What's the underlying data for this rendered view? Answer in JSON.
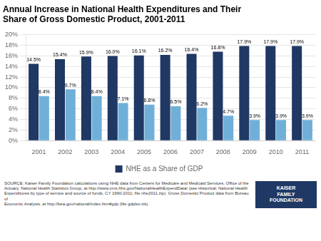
{
  "chart_data": {
    "type": "bar",
    "title": [
      "Annual Increase in National Health Expenditures and Their",
      "Share of Gross Domestic Product, 2001-2011"
    ],
    "categories": [
      "2001",
      "2002",
      "2003",
      "2004",
      "2005",
      "2006",
      "2007",
      "2008",
      "2009",
      "2010",
      "2011"
    ],
    "series": [
      {
        "name": "NHE as a Share of GDP",
        "color": "#1f3864",
        "values": [
          14.5,
          15.4,
          15.9,
          16.0,
          16.1,
          16.2,
          16.4,
          16.8,
          17.9,
          17.9,
          17.9
        ],
        "value_labels": [
          "14.5%",
          "15.4%",
          "15.9%",
          "16.0%",
          "16.1%",
          "16.2%",
          "16.4%",
          "16.8%",
          "17.9%",
          "17.9%",
          "17.9%"
        ]
      },
      {
        "color": "#70b0d8",
        "values": [
          8.4,
          9.7,
          8.4,
          7.1,
          6.8,
          6.5,
          6.2,
          4.7,
          3.9,
          3.9,
          3.9
        ],
        "value_labels": [
          "8.4%",
          "9.7%",
          "8.4%",
          "7.1%",
          "6.8%",
          "6.5%",
          "6.2%",
          "4.7%",
          "3.9%",
          "3.9%",
          "3.9%"
        ]
      }
    ],
    "ylim": [
      0,
      20
    ],
    "yticks": [
      {
        "value": 0,
        "label": "0%"
      },
      {
        "value": 2,
        "label": "2%"
      },
      {
        "value": 4,
        "label": "4%"
      },
      {
        "value": 6,
        "label": "6%"
      },
      {
        "value": 8,
        "label": "8%"
      },
      {
        "value": 10,
        "label": "10%"
      },
      {
        "value": 12,
        "label": "12%"
      },
      {
        "value": 14,
        "label": "14%"
      },
      {
        "value": 16,
        "label": "16%"
      },
      {
        "value": 18,
        "label": "18%"
      },
      {
        "value": 20,
        "label": "20%"
      }
    ],
    "grid": true,
    "legend": "bottom",
    "data_labels": true,
    "annotations": [
      "SOURCE: Kaiser Family Foundation calculations using NHE data from Centers for Medicare and Medicaid Services, Office of the\nActuary, National Health Statistics Group, at http://www.cms.hhs.gov/NationalHealthExpendData/ (see Historical; National Health\nExpenditures by type of service and source of funds, CY 1960-2011; file nhe2011.zip). Gross Domestic Product data from Bureau of\nEconomic Analysis, at http://bea.gov/national/index.htm#gdp (file gdplev.xls).",
      "KAISER\nFAMILY\nFOUNDATION"
    ]
  }
}
